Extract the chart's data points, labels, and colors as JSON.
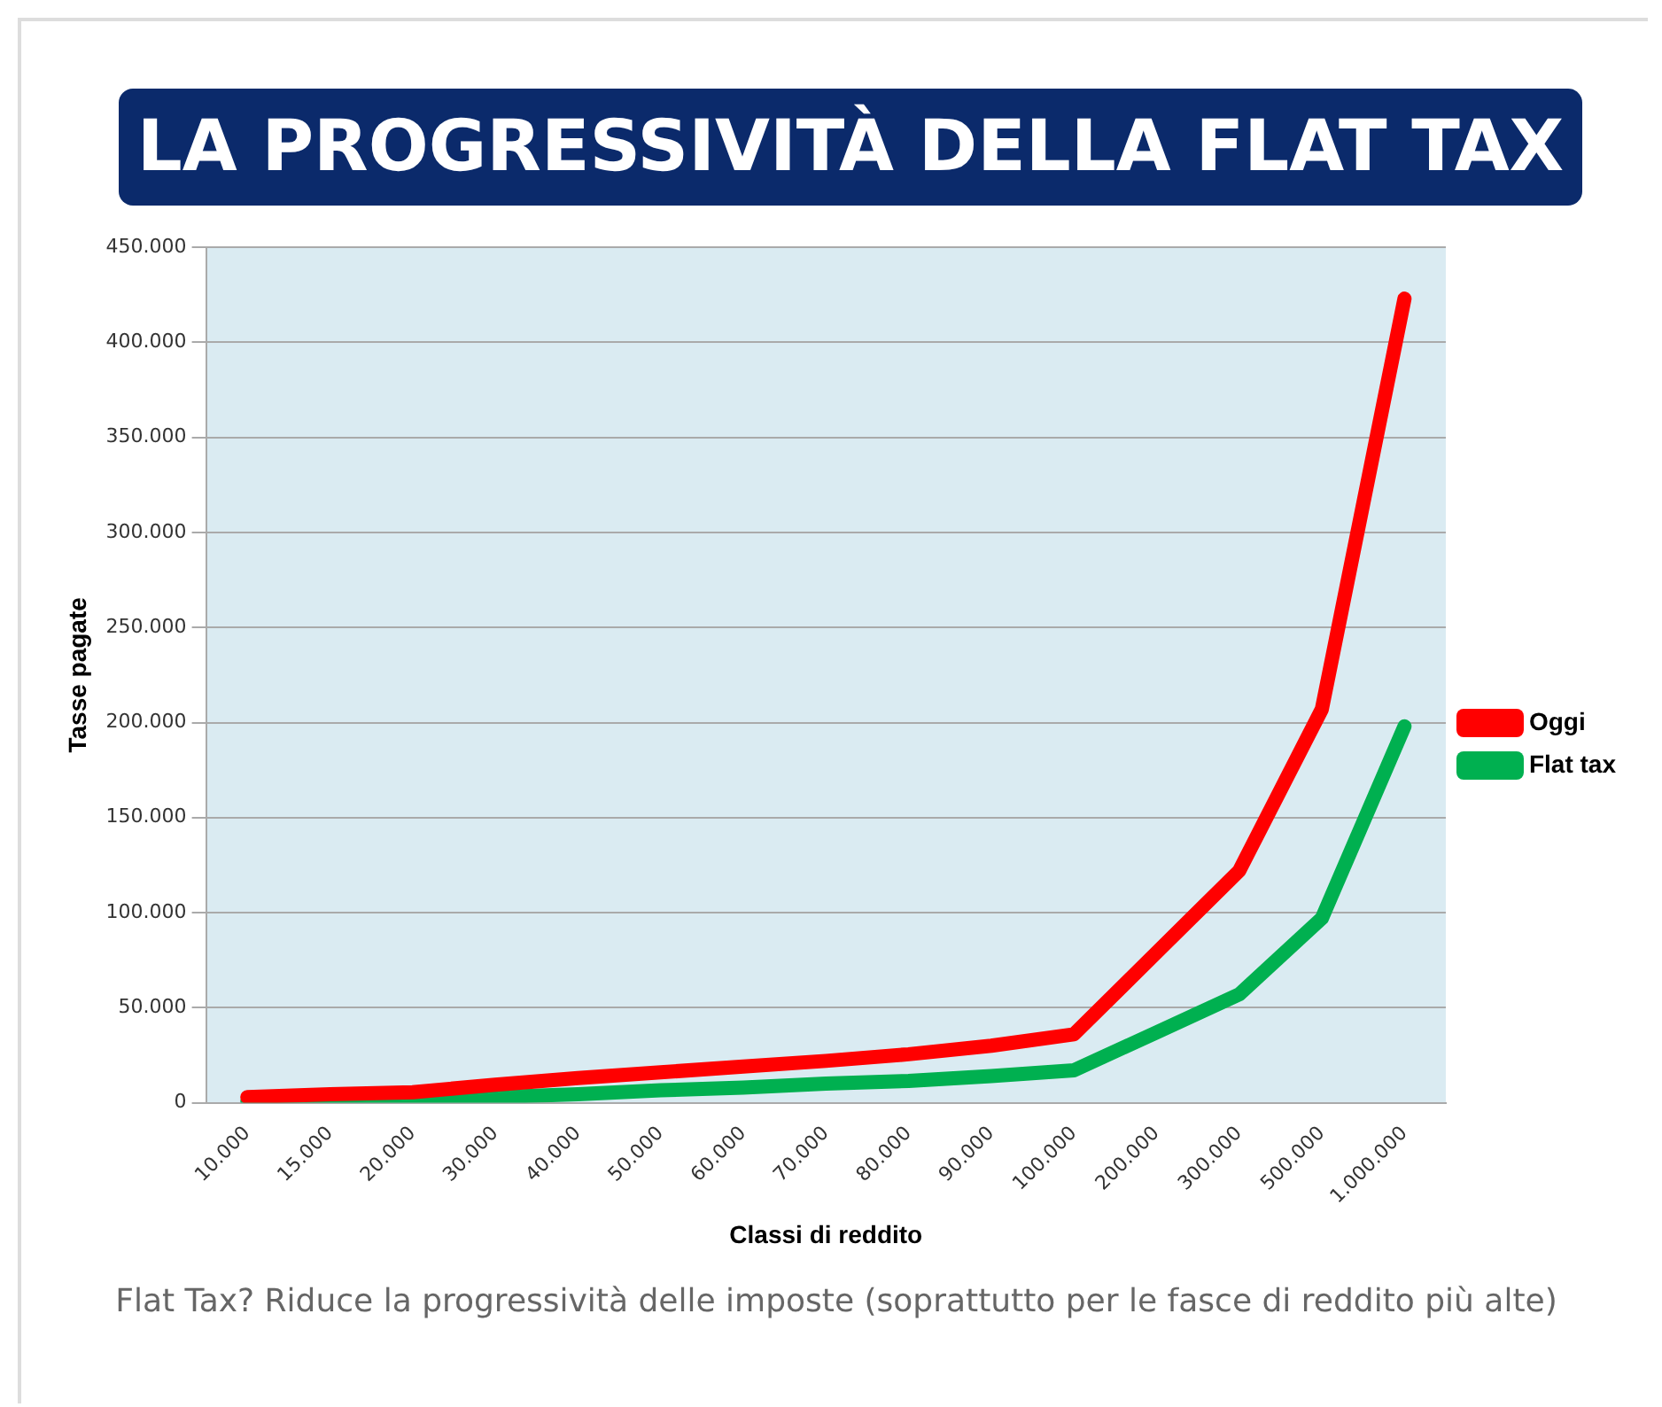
{
  "chart_data": {
    "type": "line",
    "title": "LA PROGRESSIVITÀ DELLA FLAT TAX",
    "xlabel": "Classi di reddito",
    "ylabel": "Tasse pagate",
    "annotations": [
      "Flat Tax? Riduce la progressività delle imposte (soprattutto per le fasce di reddito più alte)"
    ],
    "categories": [
      "10.000",
      "15.000",
      "20.000",
      "30.000",
      "40.000",
      "50.000",
      "60.000",
      "70.000",
      "80.000",
      "90.000",
      "100.000",
      "200.000",
      "300.000",
      "500.000",
      "1.000.000"
    ],
    "series": [
      {
        "name": "Oggi",
        "color": "#ff0000",
        "values": [
          3000,
          4500,
          5500,
          9500,
          13000,
          16000,
          19000,
          22000,
          25500,
          30000,
          36000,
          79000,
          122000,
          207000,
          423000
        ]
      },
      {
        "name": "Flat tax",
        "color": "#00b050",
        "values": [
          1000,
          1500,
          2000,
          3000,
          4500,
          6500,
          8000,
          10000,
          11500,
          14000,
          17000,
          37000,
          57000,
          97000,
          198000
        ]
      }
    ],
    "ylim": [
      0,
      450000
    ],
    "yticks": [
      {
        "value": 0,
        "label": "0"
      },
      {
        "value": 50000,
        "label": "50.000"
      },
      {
        "value": 100000,
        "label": "100.000"
      },
      {
        "value": 150000,
        "label": "150.000"
      },
      {
        "value": 200000,
        "label": "200.000"
      },
      {
        "value": 250000,
        "label": "250.000"
      },
      {
        "value": 300000,
        "label": "300.000"
      },
      {
        "value": 350000,
        "label": "350.000"
      },
      {
        "value": 400000,
        "label": "400.000"
      },
      {
        "value": 450000,
        "label": "450.000"
      }
    ],
    "grid": "y",
    "legend": "right",
    "marker": "none",
    "line_style": "solid"
  }
}
